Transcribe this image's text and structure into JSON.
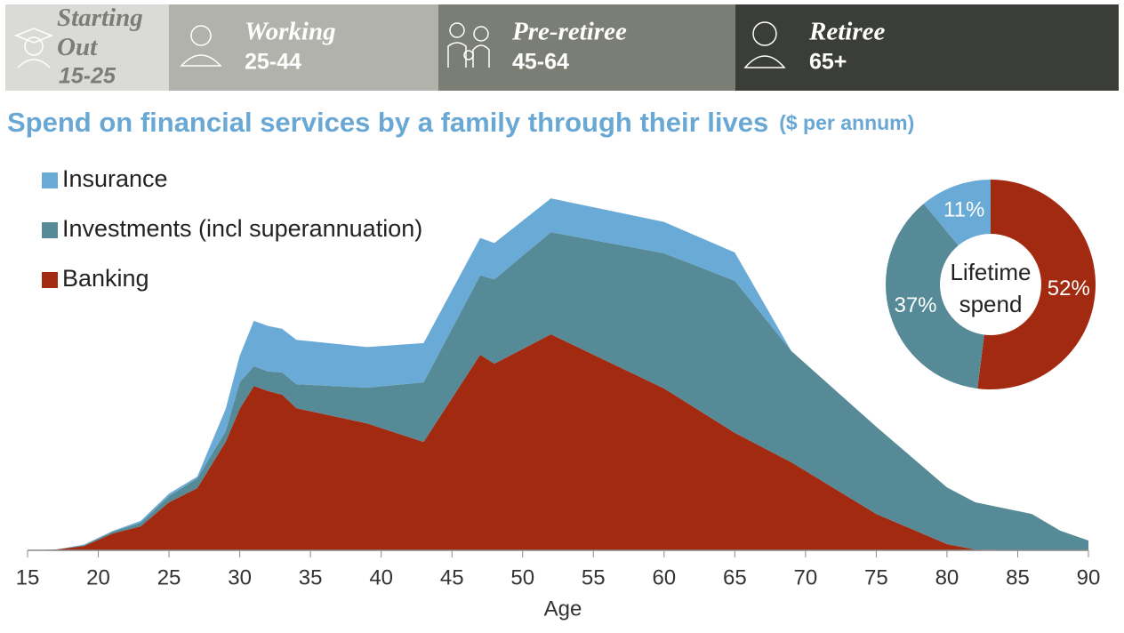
{
  "header": {
    "stages": [
      {
        "name": "Starting Out",
        "ages": "15-25"
      },
      {
        "name": "Working",
        "ages": "25-44"
      },
      {
        "name": "Pre-retiree",
        "ages": "45-64"
      },
      {
        "name": "Retiree",
        "ages": "65+"
      }
    ]
  },
  "chart_data": [
    {
      "type": "area",
      "stacked": true,
      "title": "Spend on financial services by a family through their lives",
      "subtitle": "($ per annum)",
      "x_label": "Age",
      "x": [
        15,
        17,
        19,
        21,
        23,
        25,
        27,
        29,
        30,
        31,
        32,
        33,
        34,
        39,
        43,
        47,
        48,
        52,
        60,
        65,
        69,
        75,
        80,
        82,
        86,
        88,
        90
      ],
      "series": [
        {
          "name": "Banking",
          "color": "#a12a10",
          "values": [
            0,
            0.2,
            1.2,
            4.6,
            6.6,
            13.2,
            17.1,
            29.8,
            38.9,
            45.2,
            43.8,
            42.8,
            39.1,
            34.9,
            29.8,
            53.8,
            51.3,
            59.4,
            44.5,
            32.3,
            24.2,
            10.0,
            1.7,
            0.2,
            0,
            0,
            0
          ]
        },
        {
          "name": "Investments (incl superannuation)",
          "color": "#568a96",
          "values": [
            0,
            0,
            0.2,
            0.5,
            1.0,
            1.7,
            2.7,
            2.9,
            7.3,
            5.4,
            5.4,
            6.1,
            6.6,
            9.8,
            16.4,
            21.8,
            23.2,
            28.1,
            37.2,
            41.8,
            30.6,
            24.0,
            15.6,
            13.0,
            10.0,
            5.4,
            2.7
          ]
        },
        {
          "name": "Insurance",
          "color": "#6aaad6",
          "values": [
            0,
            0,
            0.2,
            0.2,
            0.5,
            0.7,
            0.5,
            6.1,
            7.3,
            12.5,
            12.5,
            12.0,
            12.2,
            11.2,
            10.8,
            10.3,
            10.0,
            9.3,
            8.6,
            7.8,
            0,
            0,
            0,
            0,
            0,
            0,
            0
          ]
        }
      ],
      "xlim": [
        15,
        90
      ],
      "xticks": [
        15,
        20,
        25,
        30,
        35,
        40,
        45,
        50,
        55,
        60,
        65,
        70,
        75,
        80,
        85,
        90
      ],
      "ylim": [
        0,
        100
      ],
      "legend": "upper left"
    },
    {
      "type": "pie",
      "donut": true,
      "values": [
        52,
        37,
        11
      ],
      "value_labels": [
        "52%",
        "37%",
        "11%"
      ],
      "colors": [
        "#a12a10",
        "#568a96",
        "#6aaad6"
      ],
      "center_label_lines": [
        "Lifetime",
        "spend"
      ]
    }
  ]
}
